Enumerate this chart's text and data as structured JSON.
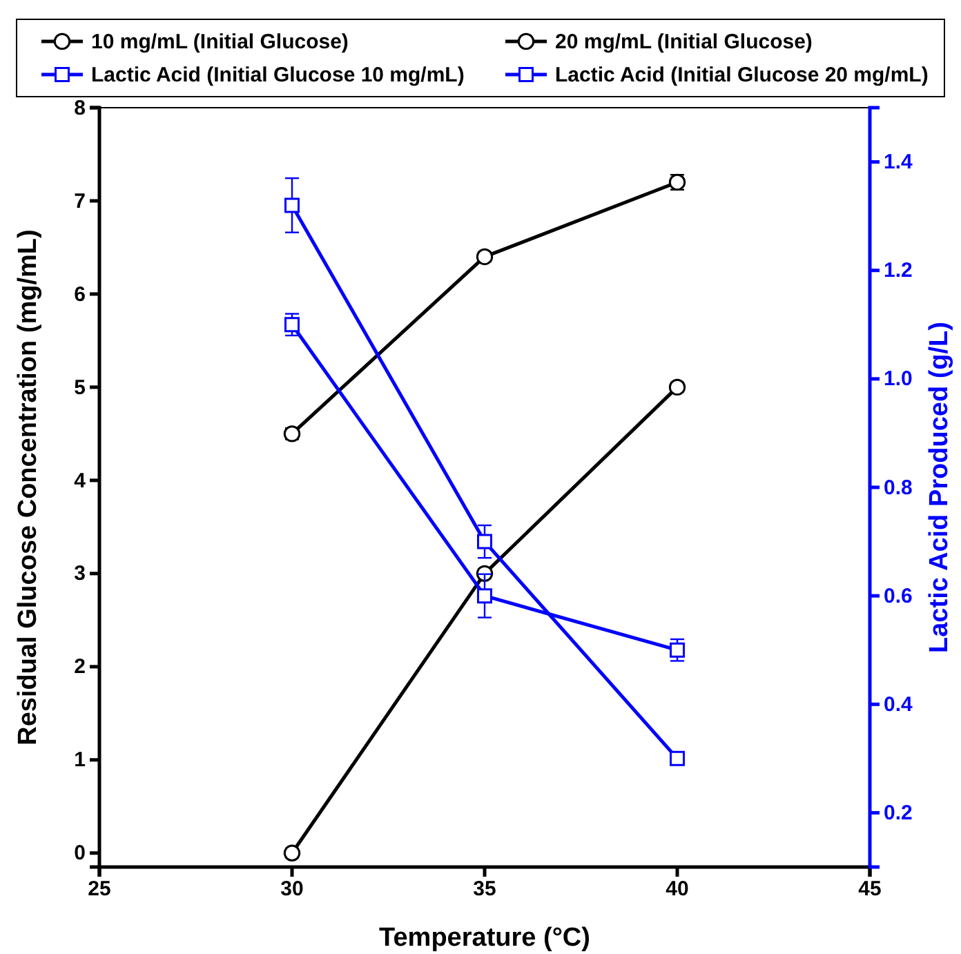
{
  "chart_data": {
    "type": "line",
    "xlabel": "Temperature (°C)",
    "ylabel": "Residual Glucose Concentration (mg/mL)",
    "y2label": "Lactic Acid Produced (g/L)",
    "x": [
      30,
      35,
      40
    ],
    "xlim": [
      25,
      45
    ],
    "xticks": [
      25,
      30,
      35,
      40,
      45
    ],
    "ylim": [
      -0.15,
      8
    ],
    "yticks": [
      0,
      1,
      2,
      3,
      4,
      5,
      6,
      7,
      8
    ],
    "y2lim": [
      0.1,
      1.5
    ],
    "y2ticks": [
      0.2,
      0.4,
      0.6,
      0.8,
      {
        "value": 1,
        "label": "1.0"
      },
      1.2,
      1.4
    ],
    "legend": "top",
    "grid": false,
    "line_style": "solid",
    "series": [
      {
        "name": "10 mg/mL (Initial Glucose)",
        "color": "#000000",
        "marker": "circle",
        "values": [
          0,
          3,
          5
        ],
        "errors": [
          0.05,
          0.05,
          0.05
        ]
      },
      {
        "name": "20 mg/mL (Initial Glucose)",
        "color": "#000000",
        "marker": "circle",
        "values": [
          4.5,
          6.4,
          7.2
        ],
        "errors": [
          0.06,
          0.05,
          0.08
        ]
      },
      {
        "name": "Lactic Acid (Initial Glucose 10 mg/mL)",
        "color": "#0000ff",
        "marker": "square",
        "axis": "y2",
        "values": [
          1.32,
          0.7,
          0.3
        ],
        "errors": [
          0.05,
          0.03,
          0.01
        ]
      },
      {
        "name": "Lactic Acid (Initial Glucose 20 mg/mL)",
        "color": "#0000ff",
        "marker": "square",
        "axis": "y2",
        "values": [
          1.1,
          0.6,
          0.5
        ],
        "errors": [
          0.02,
          0.04,
          0.02
        ]
      }
    ]
  }
}
